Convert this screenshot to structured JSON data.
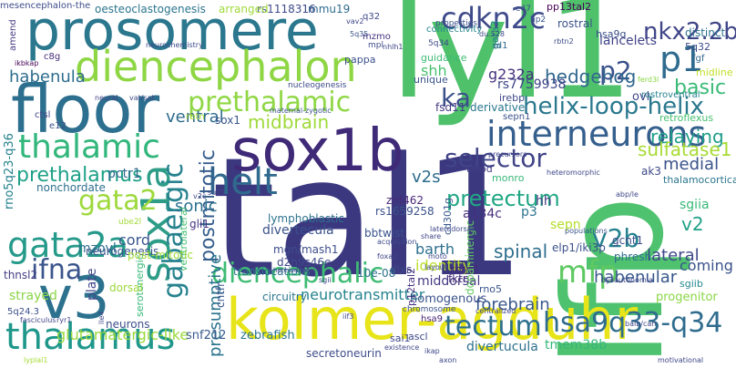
{
  "words": [
    {
      "text": "tal1",
      "color": "#3b3880"
    },
    {
      "text": "lfp",
      "color": "#4ec26f"
    },
    {
      "text": "lyl1",
      "color": "#4fc16b"
    },
    {
      "text": "kolmer-agduhr",
      "color": "#e7e419"
    },
    {
      "text": "floor",
      "color": "#2d6f8e"
    },
    {
      "text": "prosomere",
      "color": "#2a778e"
    },
    {
      "text": "sox1b",
      "color": "#3f2a78"
    },
    {
      "text": "diencephalon",
      "color": "#8ed644"
    },
    {
      "text": "v3",
      "color": "#2c718e"
    },
    {
      "text": "thalamic",
      "color": "#31b67b"
    },
    {
      "text": "gata2a",
      "color": "#269a8a"
    },
    {
      "text": "thalamus",
      "color": "#1f978b"
    },
    {
      "text": "interneurons",
      "color": "#355f8d"
    },
    {
      "text": "sox1a",
      "color": "#2e9d88"
    },
    {
      "text": "helt",
      "color": "#306a8e"
    },
    {
      "text": "p1",
      "color": "#2f6b8e"
    },
    {
      "text": "cdkn2c",
      "color": "#3e4a89"
    },
    {
      "text": "nkx2.2b",
      "color": "#404588"
    },
    {
      "text": "prethalamic",
      "color": "#8fd744"
    },
    {
      "text": "diencephalic",
      "color": "#3ebc74"
    },
    {
      "text": "tectum",
      "color": "#2d708e"
    },
    {
      "text": "hsa9q33-q34",
      "color": "#2f6c8e"
    },
    {
      "text": "mfp",
      "color": "#5ec962"
    },
    {
      "text": "v2b",
      "color": "#26818e"
    },
    {
      "text": "gata2",
      "color": "#9dd93b"
    },
    {
      "text": "ifna",
      "color": "#3a548c"
    },
    {
      "text": "selector",
      "color": "#414487"
    },
    {
      "text": "helix-loop-helix",
      "color": "#2a788e"
    },
    {
      "text": "p2",
      "color": "#3b518b"
    },
    {
      "text": "ka",
      "color": "#3b508a"
    },
    {
      "text": "gabaergic",
      "color": "#26828e"
    },
    {
      "text": "postmitotic",
      "color": "#355e8d"
    },
    {
      "text": "presumptive",
      "color": "#2b748e"
    },
    {
      "text": "prethalamus",
      "color": "#1fa187"
    },
    {
      "text": "pretectum",
      "color": "#22a785"
    },
    {
      "text": "midbrain",
      "color": "#9fda3a"
    },
    {
      "text": "hedgehog",
      "color": "#31688e"
    },
    {
      "text": "basic",
      "color": "#3aba76"
    },
    {
      "text": "relaying",
      "color": "#1f9e89"
    },
    {
      "text": "lancelets",
      "color": "#414487"
    },
    {
      "text": "habenula",
      "color": "#2e6d8e"
    },
    {
      "text": "ventral",
      "color": "#2f6b8e"
    },
    {
      "text": "shh",
      "color": "#48c16e"
    },
    {
      "text": "g232a",
      "color": "#46327e"
    },
    {
      "text": "rs7759938",
      "color": "#404588"
    },
    {
      "text": "v2s",
      "color": "#2e6e8e"
    },
    {
      "text": "sulfatase1",
      "color": "#a8db34"
    },
    {
      "text": "medial",
      "color": "#3b528b"
    },
    {
      "text": "spinal",
      "color": "#2e6e8e"
    },
    {
      "text": "habenular",
      "color": "#38588c"
    },
    {
      "text": "forebrain",
      "color": "#38588c"
    },
    {
      "text": "neurotransmitter",
      "color": "#25848e"
    },
    {
      "text": "identity",
      "color": "#bade28"
    },
    {
      "text": "barth",
      "color": "#2d708e"
    },
    {
      "text": "middorsal",
      "color": "#453882"
    },
    {
      "text": "divertecula",
      "color": "#3b528b"
    },
    {
      "text": "lymphoblastic",
      "color": "#2c728e"
    },
    {
      "text": "sonic",
      "color": "#2c718e"
    },
    {
      "text": "cord",
      "color": "#39568c"
    },
    {
      "text": "mzovl",
      "color": "#2e6e8e"
    },
    {
      "text": "coming",
      "color": "#3a538b"
    },
    {
      "text": "lateral",
      "color": "#3e4989"
    },
    {
      "text": "v2",
      "color": "#1fa188"
    },
    {
      "text": "sgiia",
      "color": "#38b977"
    },
    {
      "text": "sepn",
      "color": "#b5de2b"
    },
    {
      "text": "hh",
      "color": "#453781"
    },
    {
      "text": "p3",
      "color": "#2b748e"
    },
    {
      "text": "a134c",
      "color": "#46307e"
    },
    {
      "text": "fsd11",
      "color": "#443a83"
    },
    {
      "text": "derivative",
      "color": "#2a778e"
    },
    {
      "text": "pctr1",
      "color": "#31678e"
    },
    {
      "text": "nonchordate",
      "color": "#2d708e"
    },
    {
      "text": "rno5q23-q36",
      "color": "#26828e"
    },
    {
      "text": "serotonergic",
      "color": "#37b878"
    },
    {
      "text": "glutamatergic-like",
      "color": "#9bd93c"
    },
    {
      "text": "plate",
      "color": "#3f4889"
    },
    {
      "text": "thnsl2",
      "color": "#433e85"
    },
    {
      "text": "neurons",
      "color": "#3c4f8a"
    },
    {
      "text": "mgn/mash1",
      "color": "#3d4d8a"
    },
    {
      "text": "d2h9s46e",
      "color": "#3e4989"
    },
    {
      "text": "translocations",
      "color": "#2c738e"
    },
    {
      "text": "circuitry",
      "color": "#2a768e"
    },
    {
      "text": "snf212",
      "color": "#38588c"
    },
    {
      "text": "cntfr",
      "color": "#3a548c"
    },
    {
      "text": "zebrafish",
      "color": "#2a778e"
    },
    {
      "text": "secretoneurin",
      "color": "#3e4c8a"
    },
    {
      "text": "homogenous",
      "color": "#3b528b"
    },
    {
      "text": "hsa9",
      "color": "#482475"
    },
    {
      "text": "ascl",
      "color": "#3e4a89"
    },
    {
      "text": "sai1",
      "color": "#3f4788"
    },
    {
      "text": "divertucula",
      "color": "#2d708e"
    },
    {
      "text": "tmem38b",
      "color": "#35b779"
    },
    {
      "text": "rbtn1",
      "color": "#482979"
    },
    {
      "text": "fktn",
      "color": "#472c7a"
    },
    {
      "text": "rno5",
      "color": "#39558c"
    },
    {
      "text": "progenitor",
      "color": "#8bd646"
    },
    {
      "text": "sgiib",
      "color": "#24878e"
    },
    {
      "text": "phresh",
      "color": "#2f6c8e"
    },
    {
      "text": "gcnt1",
      "color": "#3e4c8a"
    },
    {
      "text": "elp1/iki3p",
      "color": "#3b528b"
    },
    {
      "text": "dlxs",
      "color": "#3f4788"
    },
    {
      "text": "10e-08",
      "color": "#2e6e8e"
    },
    {
      "text": "znf462",
      "color": "#482878"
    },
    {
      "text": "rs1659258",
      "color": "#3b528b"
    },
    {
      "text": "bbtwist",
      "color": "#3a548c"
    },
    {
      "text": "cd301g",
      "color": "#38588c"
    },
    {
      "text": "p12tal2",
      "color": "#472f7d"
    },
    {
      "text": "dopaminergic",
      "color": "#63cb5f"
    },
    {
      "text": "gli1",
      "color": "#463480"
    },
    {
      "text": "ventrolateral",
      "color": "#44bf70"
    },
    {
      "text": "strayed",
      "color": "#8bd646"
    },
    {
      "text": "neurogenesis",
      "color": "#3a548c"
    },
    {
      "text": "dorsal",
      "color": "#9dd93b"
    },
    {
      "text": "post-mitotic",
      "color": "#a2da37"
    },
    {
      "text": "5q24.3",
      "color": "#3c508b"
    },
    {
      "text": "mmu19",
      "color": "#2f6c8e"
    },
    {
      "text": "rs1118316",
      "color": "#3e4a89"
    },
    {
      "text": "arranged",
      "color": "#9fda3a"
    },
    {
      "text": "oesteoclastogenesis",
      "color": "#2b758e"
    },
    {
      "text": "mesencephalon-the",
      "color": "#3e4c8a"
    },
    {
      "text": "q32",
      "color": "#3f4889"
    },
    {
      "text": "mzmo",
      "color": "#46337f"
    },
    {
      "text": "connectivity",
      "color": "#25858e"
    },
    {
      "text": "pp13tal2",
      "color": "#440154"
    },
    {
      "text": "rostral",
      "color": "#3a538b"
    },
    {
      "text": "hsa9q",
      "color": "#3c4f8a"
    },
    {
      "text": "distinct",
      "color": "#2c718e"
    },
    {
      "text": "5q32",
      "color": "#3e4c8a"
    },
    {
      "text": "fgf",
      "color": "#31688e"
    },
    {
      "text": "midline",
      "color": "#c0df25"
    },
    {
      "text": "gata3",
      "color": "#26818e"
    },
    {
      "text": "guidance",
      "color": "#3dbc74"
    },
    {
      "text": "pappa",
      "color": "#3b518b"
    },
    {
      "text": "unique",
      "color": "#3a538b"
    },
    {
      "text": "irebp",
      "color": "#3f4889"
    },
    {
      "text": "sepn1",
      "color": "#3b528b"
    },
    {
      "text": "ovl",
      "color": "#404688"
    },
    {
      "text": "rostroventral",
      "color": "#26828e"
    },
    {
      "text": "retroflexus",
      "color": "#46c06f"
    },
    {
      "text": "thalamocortical",
      "color": "#2b758e"
    },
    {
      "text": "ak3",
      "color": "#3e4989"
    },
    {
      "text": "monro",
      "color": "#37b878"
    },
    {
      "text": "tmod",
      "color": "#433e85"
    },
    {
      "text": "sox1",
      "color": "#39568c"
    },
    {
      "text": "rbtn",
      "color": "#a8db34"
    },
    {
      "text": "e12",
      "color": "#3c4f8a"
    },
    {
      "text": "ctsl",
      "color": "#404588"
    },
    {
      "text": "c8g",
      "color": "#472d7b"
    },
    {
      "text": "amend",
      "color": "#443a83"
    },
    {
      "text": "ikbkap",
      "color": "#440154"
    },
    {
      "text": "neural",
      "color": "#404688"
    },
    {
      "text": "vat/sat",
      "color": "#3e4a89"
    },
    {
      "text": "nucleogenesis",
      "color": "#3e4a89"
    },
    {
      "text": "id1",
      "color": "#31678e"
    },
    {
      "text": "mpl",
      "color": "#3e4989"
    },
    {
      "text": "nhlh1",
      "color": "#3f4788"
    },
    {
      "text": "5q34",
      "color": "#3f4788"
    },
    {
      "text": "properties",
      "color": "#3b518b"
    },
    {
      "text": "du.528",
      "color": "#3f4788"
    },
    {
      "text": "e47",
      "color": "#3c4f8a"
    },
    {
      "text": "hp2",
      "color": "#3a548c"
    },
    {
      "text": "vav2",
      "color": "#3f4788"
    },
    {
      "text": "5q35",
      "color": "#3a538b"
    },
    {
      "text": "rbtn2",
      "color": "#3e4c8a"
    },
    {
      "text": "ferd3l",
      "color": "#8bd646"
    },
    {
      "text": "neurochemistry",
      "color": "#3e4a89"
    },
    {
      "text": "maternal-zygotic",
      "color": "#3b528b"
    },
    {
      "text": "precursors",
      "color": "#3f4788"
    },
    {
      "text": "heteromorphic",
      "color": "#3e4989"
    },
    {
      "text": "abp/le",
      "color": "#3f4788"
    },
    {
      "text": "sulf1",
      "color": "#404688"
    },
    {
      "text": "v2c",
      "color": "#3e4989"
    },
    {
      "text": "ube2l",
      "color": "#a2da37"
    },
    {
      "text": "acquisition",
      "color": "#3e4c8a"
    },
    {
      "text": "laterodorsal",
      "color": "#3e4989"
    },
    {
      "text": "populations",
      "color": "#39568c"
    },
    {
      "text": "dysautonomia",
      "color": "#3f4788"
    },
    {
      "text": "foxa2",
      "color": "#3f4788"
    },
    {
      "text": "layout",
      "color": "#3f4788"
    },
    {
      "text": "moto",
      "color": "#3f4788"
    },
    {
      "text": "sgii",
      "color": "#3f4788"
    },
    {
      "text": "heterodimers",
      "color": "#3f4788"
    },
    {
      "text": "iif3",
      "color": "#3f4788"
    },
    {
      "text": "chromosome",
      "color": "#3b528b"
    },
    {
      "text": "centralized",
      "color": "#3f4788"
    },
    {
      "text": "balb/can",
      "color": "#3f4788"
    },
    {
      "text": "fasciculus",
      "color": "#3f4788"
    },
    {
      "text": "ryr1",
      "color": "#3f4788"
    },
    {
      "text": "lie4",
      "color": "#3f4788"
    },
    {
      "text": "lyplal1",
      "color": "#a8db34"
    },
    {
      "text": "ikap",
      "color": "#3f4788"
    },
    {
      "text": "existence",
      "color": "#3f4788"
    },
    {
      "text": "share",
      "color": "#3f4788"
    },
    {
      "text": "axon",
      "color": "#3f4788"
    },
    {
      "text": "motivational",
      "color": "#3f4788"
    }
  ]
}
